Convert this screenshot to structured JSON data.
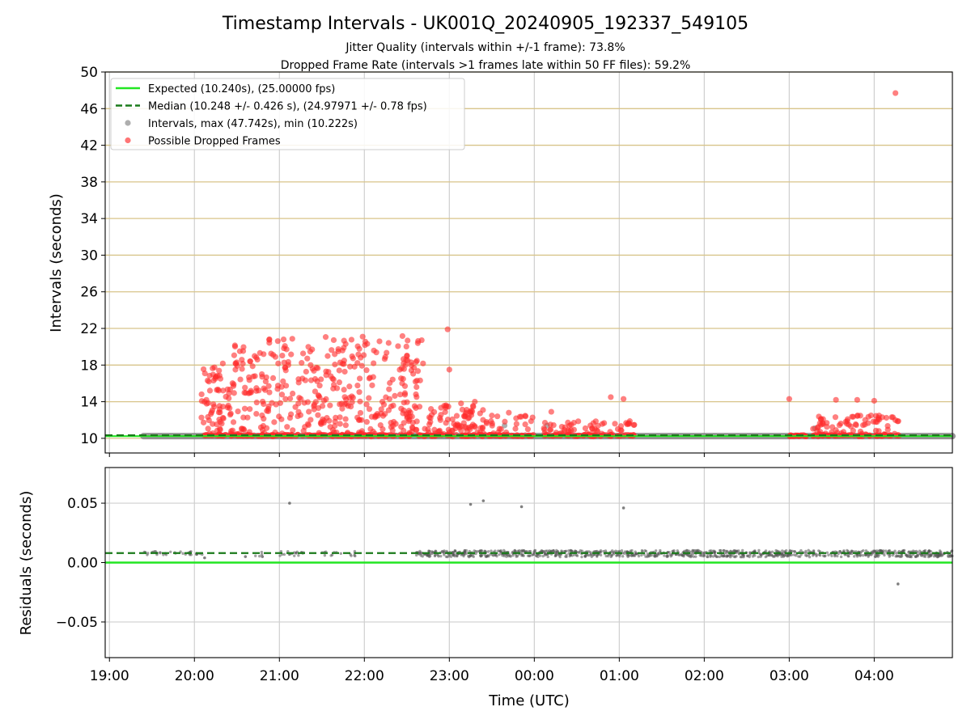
{
  "chart_data": [
    {
      "panel": "intervals",
      "type": "scatter",
      "title": "Timestamp Intervals - UK001Q_20240905_192337_549105",
      "subtitle_lines": [
        "Jitter Quality (intervals within +/-1 frame): 73.8%",
        "Dropped Frame Rate (intervals >1 frames late within 50 FF files): 59.2%"
      ],
      "ylabel": "Intervals (seconds)",
      "xlabel": "",
      "ylim": [
        8.4,
        50
      ],
      "xlim_hours": [
        18.95,
        28.92
      ],
      "yticks": [
        10,
        14,
        18,
        22,
        26,
        30,
        34,
        38,
        42,
        46,
        50
      ],
      "grid": "horizontal-goldenrod",
      "legend_position": "top-left",
      "legend": [
        {
          "label": "Expected (10.240s), (25.00000 fps)",
          "style": "solid",
          "color": "#22e622"
        },
        {
          "label": "Median (10.248 +/- 0.426 s), (24.97971 +/- 0.78 fps)",
          "style": "dashed",
          "color": "#1a7a1a"
        },
        {
          "label": "Intervals, max (47.742s), min (10.222s)",
          "style": "marker",
          "color": "#8c8c8c"
        },
        {
          "label": "Possible Dropped Frames",
          "style": "marker",
          "color": "#ff3b3b"
        }
      ],
      "expected_value": 10.24,
      "median_value": 10.248,
      "interval_band": {
        "start": 19.4,
        "end": 28.92,
        "value": 10.24
      },
      "dropped_clusters": [
        {
          "start": 20.08,
          "end": 20.4,
          "ymin": 10.5,
          "ymax": 18.2,
          "count": 60
        },
        {
          "start": 20.4,
          "end": 22.7,
          "ymin": 10.2,
          "ymax": 21.2,
          "count": 420
        },
        {
          "start": 22.7,
          "end": 23.4,
          "ymin": 10.2,
          "ymax": 14.0,
          "count": 90
        },
        {
          "start": 23.4,
          "end": 24.0,
          "ymin": 10.2,
          "ymax": 12.5,
          "count": 35
        },
        {
          "start": 24.1,
          "end": 25.2,
          "ymin": 10.2,
          "ymax": 12.0,
          "count": 60
        },
        {
          "start": 27.0,
          "end": 27.2,
          "ymin": 10.2,
          "ymax": 10.3,
          "count": 12
        },
        {
          "start": 27.28,
          "end": 28.3,
          "ymin": 10.2,
          "ymax": 12.5,
          "count": 80
        }
      ],
      "dropped_points": [
        {
          "x": 22.98,
          "y": 21.9
        },
        {
          "x": 21.05,
          "y": 20.8
        },
        {
          "x": 21.98,
          "y": 21.1
        },
        {
          "x": 23.0,
          "y": 17.5
        },
        {
          "x": 24.9,
          "y": 14.5
        },
        {
          "x": 25.05,
          "y": 14.3
        },
        {
          "x": 27.0,
          "y": 14.3
        },
        {
          "x": 27.55,
          "y": 14.2
        },
        {
          "x": 27.8,
          "y": 14.2
        },
        {
          "x": 28.0,
          "y": 14.1
        },
        {
          "x": 28.25,
          "y": 47.7
        },
        {
          "x": 28.22,
          "y": 12.3
        },
        {
          "x": 23.3,
          "y": 14.0
        },
        {
          "x": 23.7,
          "y": 12.8
        },
        {
          "x": 24.2,
          "y": 12.9
        }
      ],
      "gray_outliers": [
        {
          "x": 23.65,
          "y": 11.4
        },
        {
          "x": 24.15,
          "y": 11.4
        },
        {
          "x": 27.3,
          "y": 11.1
        }
      ]
    },
    {
      "panel": "residuals",
      "type": "scatter",
      "ylabel": "Residuals (seconds)",
      "xlabel": "Time (UTC)",
      "ylim": [
        -0.08,
        0.08
      ],
      "yticks": [
        -0.05,
        0.0,
        0.05
      ],
      "ytick_labels": [
        "−0.05",
        "0.00",
        "0.05"
      ],
      "xticks_hours": [
        19,
        20,
        21,
        22,
        23,
        24,
        25,
        26,
        27,
        28
      ],
      "xtick_labels": [
        "19:00",
        "20:00",
        "21:00",
        "22:00",
        "23:00",
        "00:00",
        "01:00",
        "02:00",
        "03:00",
        "04:00"
      ],
      "grid": "both-gray",
      "expected_value": 0.0,
      "median_value": 0.008,
      "band_segments": [
        {
          "start": 19.4,
          "end": 20.1,
          "center": 0.008,
          "spread": 0.0015,
          "count": 35
        },
        {
          "start": 20.6,
          "end": 20.8,
          "center": 0.007,
          "spread": 0.002,
          "count": 4
        },
        {
          "start": 20.98,
          "end": 21.3,
          "center": 0.0075,
          "spread": 0.002,
          "count": 18
        },
        {
          "start": 21.5,
          "end": 21.9,
          "center": 0.0075,
          "spread": 0.002,
          "count": 15
        },
        {
          "start": 22.6,
          "end": 28.92,
          "center": 0.0075,
          "spread": 0.0028,
          "count": 950
        }
      ],
      "outliers": [
        {
          "x": 21.12,
          "y": 0.05
        },
        {
          "x": 23.25,
          "y": 0.049
        },
        {
          "x": 23.4,
          "y": 0.052
        },
        {
          "x": 23.85,
          "y": 0.047
        },
        {
          "x": 25.05,
          "y": 0.046
        },
        {
          "x": 28.28,
          "y": -0.018
        },
        {
          "x": 20.12,
          "y": 0.004
        },
        {
          "x": 20.8,
          "y": 0.005
        },
        {
          "x": 20.6,
          "y": 0.005
        }
      ]
    }
  ]
}
